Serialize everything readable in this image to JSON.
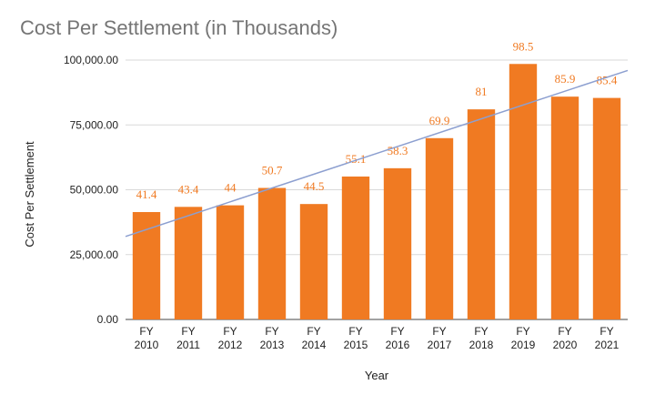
{
  "chart_data": {
    "type": "bar",
    "title": "Cost Per Settlement (in Thousands)",
    "xlabel": "Year",
    "ylabel": "Cost Per Settlement",
    "ylim": [
      0,
      100000
    ],
    "yticks": [
      0,
      25000,
      50000,
      75000,
      100000
    ],
    "ytick_labels": [
      "0.00",
      "25,000.00",
      "50,000.00",
      "75,000.00",
      "100,000.00"
    ],
    "grid": true,
    "categories": [
      [
        "FY",
        "2010"
      ],
      [
        "FY",
        "2011"
      ],
      [
        "FY",
        "2012"
      ],
      [
        "FY",
        "2013"
      ],
      [
        "FY",
        "2014"
      ],
      [
        "FY",
        "2015"
      ],
      [
        "FY",
        "2016"
      ],
      [
        "FY",
        "2017"
      ],
      [
        "FY",
        "2018"
      ],
      [
        "FY",
        "2019"
      ],
      [
        "FY",
        "2020"
      ],
      [
        "FY",
        "2021"
      ]
    ],
    "values": [
      41400,
      43400,
      44000,
      50700,
      44500,
      55100,
      58300,
      69900,
      81000,
      98500,
      85900,
      85400
    ],
    "data_labels": [
      "41.4",
      "43.4",
      "44",
      "50.7",
      "44.5",
      "55.1",
      "58.3",
      "69.9",
      "81",
      "98.5",
      "85.9",
      "85.4"
    ],
    "trendline": {
      "type": "linear",
      "start_value": 32000,
      "end_value": 96000
    },
    "colors": {
      "bar": "#f07a22",
      "label": "#f07a22",
      "grid": "#d9d9d9",
      "trend": "#8c9fd0"
    }
  }
}
